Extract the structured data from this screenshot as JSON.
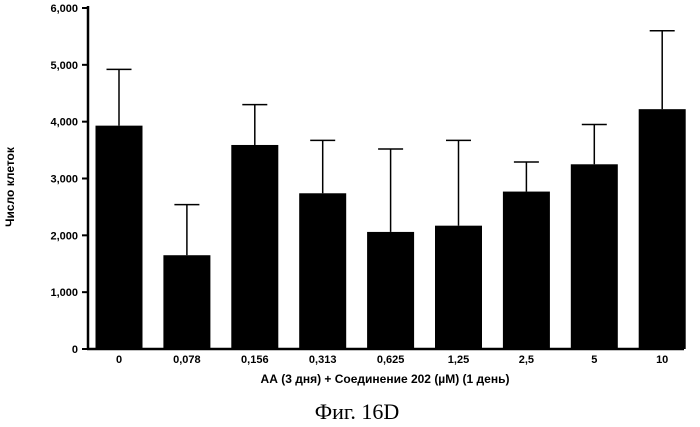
{
  "chart_data": {
    "type": "bar",
    "categories": [
      "0",
      "0,078",
      "0,156",
      "0,313",
      "0,625",
      "1,25",
      "2,5",
      "5",
      "10"
    ],
    "values": [
      3930,
      1650,
      3590,
      2740,
      2060,
      2170,
      2770,
      3250,
      4220
    ],
    "error_upper": [
      4920,
      2540,
      4300,
      3670,
      3520,
      3670,
      3290,
      3950,
      5600
    ],
    "ylim": [
      0,
      6000
    ],
    "yticks": [
      {
        "value": 0,
        "label": "0"
      },
      {
        "value": 1000,
        "label": "1,000"
      },
      {
        "value": 2000,
        "label": "2,000"
      },
      {
        "value": 3000,
        "label": "3,000"
      },
      {
        "value": 4000,
        "label": "4,000"
      },
      {
        "value": 5000,
        "label": "5,000"
      },
      {
        "value": 6000,
        "label": "6,000"
      }
    ],
    "xlabel": "АА (3 дня) + Соединение 202 (µM) (1 день)",
    "ylabel": "Число клеток",
    "grid": false,
    "bar_color": "#000000"
  },
  "caption": "Фиг. 16D"
}
